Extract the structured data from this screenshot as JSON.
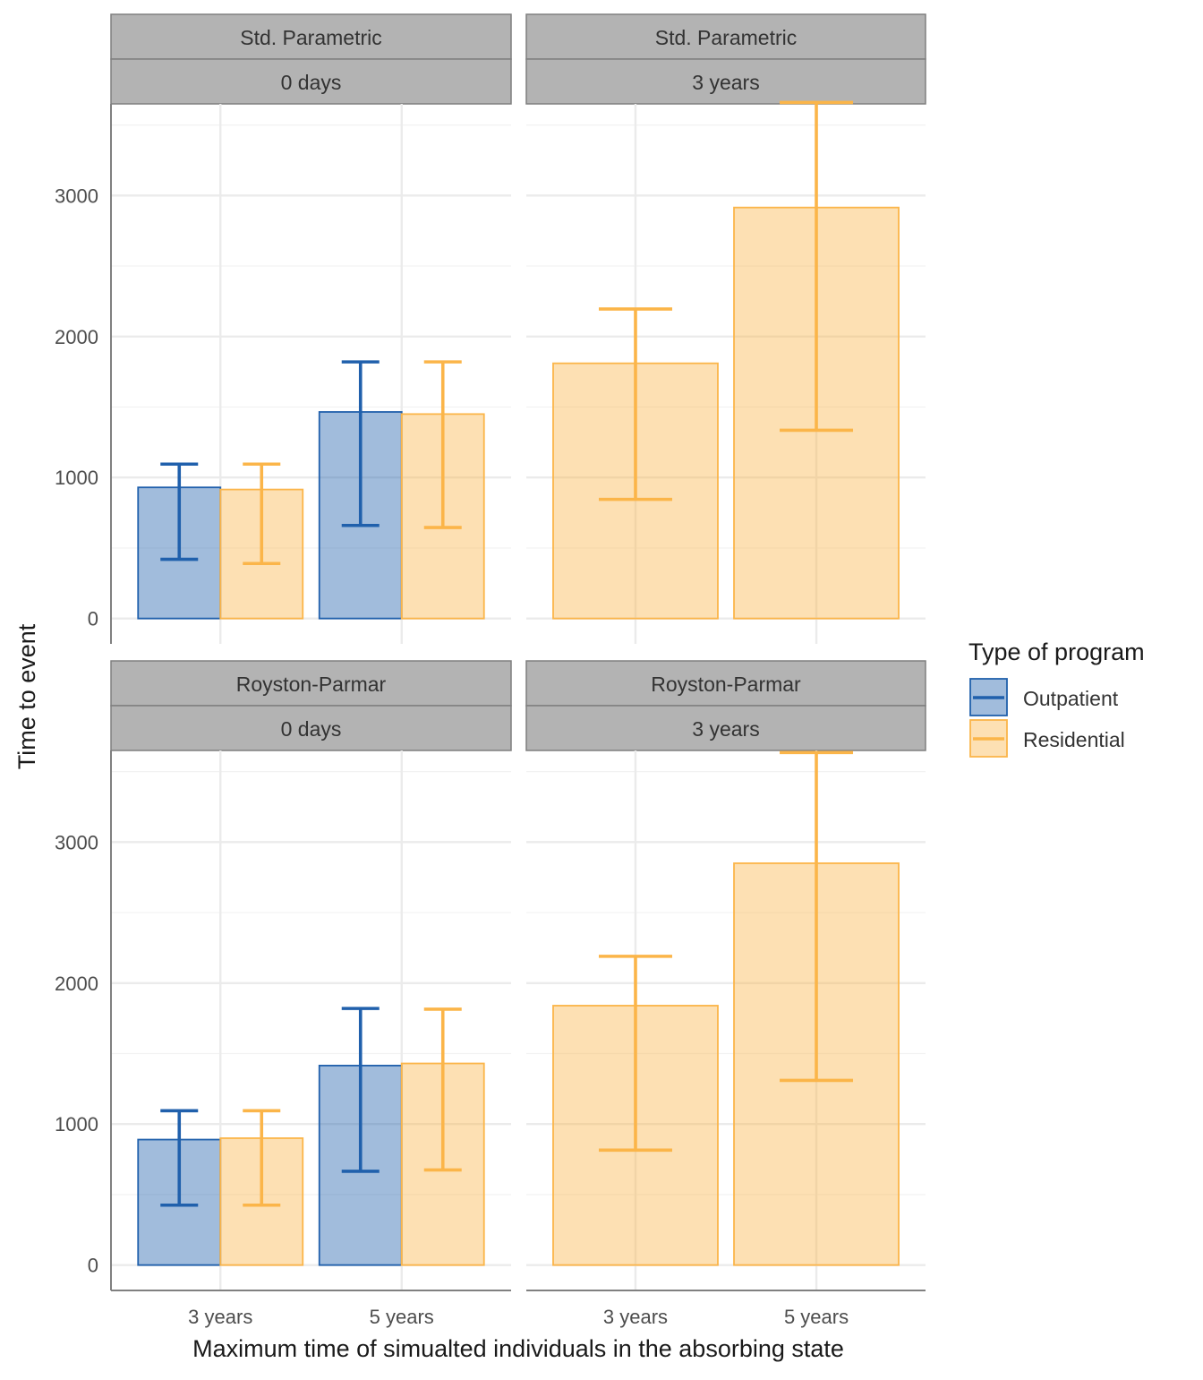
{
  "chart_data": {
    "type": "bar",
    "subtype": "faceted grouped bar with error bars",
    "xlabel": "Maximum time of simualted individuals in the absorbing state",
    "ylabel": "Time to event",
    "categories": [
      "3 years",
      "5 years"
    ],
    "ylim": [
      -180,
      3650
    ],
    "y_ticks": [
      0,
      1000,
      2000,
      3000
    ],
    "grid": true,
    "legend": {
      "title": "Type of program",
      "position": "right",
      "items": [
        "Outpatient",
        "Residential"
      ]
    },
    "colors": {
      "Outpatient": "#2060ac",
      "Residential": "#fbb549",
      "strip_bg": "#b3b3b3",
      "strip_border": "#7f7f7f",
      "grid": "#ebebeb",
      "axis": "#808080"
    },
    "panels": [
      {
        "strip": [
          "Std. Parametric",
          "0 days"
        ],
        "series": [
          {
            "name": "Outpatient",
            "values": [
              930,
              1465
            ],
            "lower": [
              420,
              660
            ],
            "upper": [
              1095,
              1820
            ]
          },
          {
            "name": "Residential",
            "values": [
              915,
              1450
            ],
            "lower": [
              390,
              645
            ],
            "upper": [
              1095,
              1820
            ]
          }
        ]
      },
      {
        "strip": [
          "Std. Parametric",
          "3 years"
        ],
        "series": [
          {
            "name": "Residential",
            "values": [
              1810,
              2915
            ],
            "lower": [
              845,
              1335
            ],
            "upper": [
              2195,
              3660
            ]
          }
        ]
      },
      {
        "strip": [
          "Royston-Parmar",
          "0 days"
        ],
        "series": [
          {
            "name": "Outpatient",
            "values": [
              890,
              1415
            ],
            "lower": [
              425,
              665
            ],
            "upper": [
              1095,
              1820
            ]
          },
          {
            "name": "Residential",
            "values": [
              900,
              1430
            ],
            "lower": [
              425,
              675
            ],
            "upper": [
              1095,
              1815
            ]
          }
        ]
      },
      {
        "strip": [
          "Royston-Parmar",
          "3 years"
        ],
        "series": [
          {
            "name": "Residential",
            "values": [
              1840,
              2850
            ],
            "lower": [
              815,
              1310
            ],
            "upper": [
              2190,
              3635
            ]
          }
        ]
      }
    ]
  }
}
